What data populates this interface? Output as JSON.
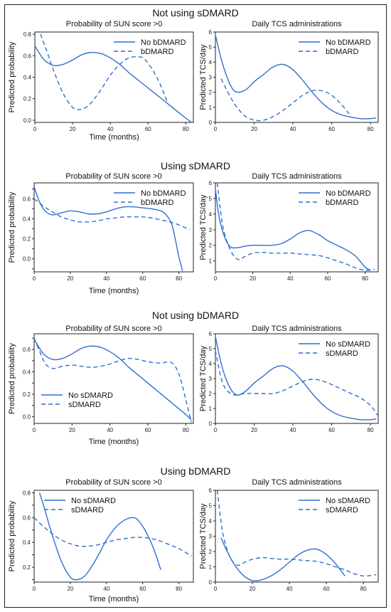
{
  "colors": {
    "series": "#2f6fd0",
    "axis": "#222222",
    "frame": "#222222"
  },
  "sections": [
    {
      "title": "Not using sDMARD"
    },
    {
      "title": "Using sDMARD"
    },
    {
      "title": "Not using bDMARD"
    },
    {
      "title": "Using bDMARD"
    }
  ],
  "chart_data": [
    {
      "type": "line",
      "section": 0,
      "title": "Probability of SUN score >0",
      "xlabel": "Time (months)",
      "ylabel": "Predicted probability",
      "xlim": [
        0,
        84
      ],
      "ylim": [
        -0.02,
        0.82
      ],
      "xticks": [
        0,
        20,
        40,
        60,
        80
      ],
      "yticks": [
        0.0,
        0.2,
        0.4,
        0.6,
        0.8
      ],
      "ytick_labels": [
        "0.0",
        "0.2",
        "0.4",
        "0.6",
        "0.8"
      ],
      "legend": "top-right",
      "series": [
        {
          "name": "No bDMARD",
          "dash": "solid",
          "x": [
            0,
            5,
            10,
            15,
            20,
            25,
            30,
            35,
            40,
            45,
            50,
            55,
            60,
            65,
            70,
            75,
            80,
            83
          ],
          "y": [
            0.69,
            0.56,
            0.51,
            0.52,
            0.56,
            0.61,
            0.63,
            0.62,
            0.58,
            0.52,
            0.44,
            0.37,
            0.3,
            0.23,
            0.16,
            0.09,
            0.02,
            -0.02
          ]
        },
        {
          "name": "bDMARD",
          "dash": "dashed",
          "x": [
            3,
            6,
            10,
            15,
            20,
            24,
            28,
            32,
            36,
            40,
            45,
            50,
            55,
            58,
            62,
            66,
            70
          ],
          "y": [
            0.8,
            0.66,
            0.46,
            0.25,
            0.12,
            0.1,
            0.13,
            0.21,
            0.31,
            0.42,
            0.52,
            0.58,
            0.59,
            0.57,
            0.48,
            0.35,
            0.18
          ]
        }
      ]
    },
    {
      "type": "line",
      "section": 0,
      "title": "Daily TCS administrations",
      "xlabel": "",
      "ylabel": "Predicted  TCS/day",
      "xlim": [
        0,
        84
      ],
      "ylim": [
        0,
        6
      ],
      "xticks": [
        0,
        20,
        40,
        60,
        80
      ],
      "yticks": [
        0,
        1,
        2,
        3,
        4,
        5,
        6
      ],
      "ytick_labels": [
        "0",
        "1",
        "2",
        "3",
        "4",
        "5",
        "6"
      ],
      "legend": "top-right",
      "series": [
        {
          "name": "No bDMARD",
          "dash": "solid",
          "x": [
            0,
            3,
            6,
            9,
            12,
            16,
            20,
            25,
            30,
            35,
            40,
            45,
            50,
            55,
            60,
            65,
            70,
            75,
            80,
            83
          ],
          "y": [
            5.8,
            4.2,
            3.0,
            2.2,
            2.0,
            2.2,
            2.7,
            3.2,
            3.7,
            3.85,
            3.5,
            2.8,
            2.0,
            1.3,
            0.8,
            0.5,
            0.35,
            0.25,
            0.25,
            0.3
          ]
        },
        {
          "name": "bDMARD",
          "dash": "dashed",
          "x": [
            3,
            6,
            10,
            15,
            20,
            25,
            30,
            35,
            40,
            45,
            50,
            55,
            60,
            65,
            70
          ],
          "y": [
            2.9,
            2.1,
            1.2,
            0.45,
            0.15,
            0.15,
            0.4,
            0.8,
            1.3,
            1.8,
            2.1,
            2.1,
            1.8,
            1.2,
            0.4
          ]
        }
      ]
    },
    {
      "type": "line",
      "section": 1,
      "title": "Probability of SUN score >0",
      "xlabel": "Time (months)",
      "ylabel": "Predicted probability",
      "xlim": [
        0,
        88
      ],
      "ylim": [
        -0.13,
        0.76
      ],
      "xticks": [
        0,
        20,
        40,
        60,
        80
      ],
      "yticks": [
        -0.1,
        0.0,
        0.1,
        0.2,
        0.3,
        0.4,
        0.5,
        0.6,
        0.7
      ],
      "ytick_labels": [
        "",
        "0.0",
        "",
        "0.2",
        "",
        "0.4",
        "",
        "0.6",
        ""
      ],
      "legend": "top-right",
      "series": [
        {
          "name": "No bDMARD",
          "dash": "solid",
          "x": [
            0,
            3,
            6,
            10,
            15,
            20,
            25,
            30,
            35,
            40,
            45,
            50,
            55,
            60,
            65,
            70,
            73,
            76,
            78,
            80,
            82
          ],
          "y": [
            0.72,
            0.57,
            0.48,
            0.44,
            0.46,
            0.48,
            0.47,
            0.45,
            0.45,
            0.47,
            0.5,
            0.52,
            0.52,
            0.51,
            0.5,
            0.48,
            0.44,
            0.35,
            0.2,
            0.02,
            -0.12
          ]
        },
        {
          "name": "bDMARD",
          "dash": "dashed",
          "x": [
            0,
            5,
            10,
            15,
            20,
            25,
            30,
            35,
            40,
            45,
            50,
            55,
            60,
            65,
            70,
            75,
            80,
            86
          ],
          "y": [
            0.6,
            0.53,
            0.47,
            0.42,
            0.39,
            0.37,
            0.37,
            0.38,
            0.4,
            0.41,
            0.42,
            0.42,
            0.42,
            0.41,
            0.39,
            0.37,
            0.34,
            0.29
          ]
        }
      ]
    },
    {
      "type": "line",
      "section": 1,
      "title": "Daily TCS administrations",
      "xlabel": "",
      "ylabel": "Predicted  TCS/day",
      "xlim": [
        0,
        87
      ],
      "ylim": [
        0.3,
        6
      ],
      "xticks": [
        0,
        20,
        40,
        60,
        80
      ],
      "yticks": [
        1,
        2,
        3,
        4,
        5,
        6
      ],
      "ytick_labels": [
        "1",
        "2",
        "3",
        "4",
        "5",
        "6"
      ],
      "legend": "top-right",
      "series": [
        {
          "name": "No bDMARD",
          "dash": "solid",
          "x": [
            0,
            2,
            5,
            8,
            12,
            16,
            20,
            25,
            30,
            35,
            40,
            45,
            50,
            55,
            60,
            65,
            70,
            75,
            80,
            83
          ],
          "y": [
            5.6,
            3.8,
            2.5,
            1.9,
            1.85,
            1.95,
            2.0,
            2.0,
            2.0,
            2.1,
            2.4,
            2.8,
            2.95,
            2.7,
            2.3,
            2.0,
            1.7,
            1.3,
            0.6,
            0.4
          ]
        },
        {
          "name": "bDMARD",
          "dash": "dashed",
          "x": [
            1,
            4,
            8,
            12,
            16,
            20,
            25,
            30,
            35,
            40,
            45,
            50,
            55,
            60,
            65,
            70,
            75,
            80,
            85
          ],
          "y": [
            6.0,
            3.2,
            1.7,
            1.1,
            1.3,
            1.5,
            1.55,
            1.5,
            1.5,
            1.5,
            1.45,
            1.4,
            1.35,
            1.2,
            1.0,
            0.8,
            0.55,
            0.4,
            0.45
          ]
        }
      ]
    },
    {
      "type": "line",
      "section": 2,
      "title": "Probability of SUN score >0",
      "xlabel": "Time (months)",
      "ylabel": "Predicted probability",
      "xlim": [
        0,
        84
      ],
      "ylim": [
        -0.06,
        0.74
      ],
      "xticks": [
        0,
        20,
        40,
        60,
        80
      ],
      "yticks": [
        0.0,
        0.1,
        0.2,
        0.3,
        0.4,
        0.5,
        0.6,
        0.7
      ],
      "ytick_labels": [
        "0.0",
        "",
        "0.2",
        "",
        "0.4",
        "",
        "0.6",
        ""
      ],
      "legend": "bottom-center",
      "series": [
        {
          "name": "No sDMARD",
          "dash": "solid",
          "x": [
            0,
            5,
            10,
            15,
            20,
            25,
            30,
            35,
            40,
            45,
            50,
            55,
            60,
            65,
            70,
            75,
            80,
            83
          ],
          "y": [
            0.69,
            0.56,
            0.51,
            0.52,
            0.56,
            0.61,
            0.63,
            0.62,
            0.58,
            0.52,
            0.44,
            0.37,
            0.3,
            0.23,
            0.16,
            0.09,
            0.02,
            -0.03
          ]
        },
        {
          "name": "sDMARD",
          "dash": "dashed",
          "x": [
            0,
            3,
            6,
            10,
            15,
            20,
            25,
            30,
            35,
            40,
            45,
            50,
            55,
            60,
            65,
            68,
            71,
            74,
            77,
            80,
            83
          ],
          "y": [
            0.7,
            0.58,
            0.47,
            0.43,
            0.45,
            0.46,
            0.45,
            0.44,
            0.45,
            0.47,
            0.5,
            0.52,
            0.51,
            0.49,
            0.48,
            0.48,
            0.49,
            0.46,
            0.35,
            0.15,
            -0.05
          ]
        }
      ]
    },
    {
      "type": "line",
      "section": 2,
      "title": "Daily TCS administrations",
      "xlabel": "",
      "ylabel": "Predicted  TCS/day",
      "xlim": [
        0,
        84
      ],
      "ylim": [
        0,
        6
      ],
      "xticks": [
        0,
        20,
        40,
        60,
        80
      ],
      "yticks": [
        0,
        1,
        2,
        3,
        4,
        5,
        6
      ],
      "ytick_labels": [
        "0",
        "1",
        "2",
        "3",
        "4",
        "5",
        "6"
      ],
      "legend": "top-right",
      "series": [
        {
          "name": "No sDMARD",
          "dash": "solid",
          "x": [
            0,
            3,
            6,
            9,
            12,
            16,
            20,
            25,
            30,
            35,
            40,
            45,
            50,
            55,
            60,
            65,
            70,
            75,
            80,
            83
          ],
          "y": [
            5.8,
            4.0,
            2.8,
            2.1,
            1.9,
            2.2,
            2.7,
            3.2,
            3.7,
            3.85,
            3.5,
            2.8,
            2.0,
            1.3,
            0.8,
            0.5,
            0.35,
            0.25,
            0.25,
            0.3
          ]
        },
        {
          "name": "sDMARD",
          "dash": "dashed",
          "x": [
            0,
            3,
            6,
            10,
            15,
            20,
            25,
            30,
            35,
            40,
            45,
            50,
            55,
            60,
            65,
            70,
            75,
            80,
            84
          ],
          "y": [
            4.9,
            3.0,
            2.2,
            1.9,
            2.0,
            2.0,
            2.0,
            2.0,
            2.2,
            2.5,
            2.8,
            2.95,
            2.85,
            2.6,
            2.3,
            2.0,
            1.7,
            1.2,
            0.5
          ]
        }
      ]
    },
    {
      "type": "line",
      "section": 3,
      "title": "Probability of SUN score >0",
      "xlabel": "Time (months)",
      "ylabel": "Predicted probability",
      "xlim": [
        0,
        88
      ],
      "ylim": [
        0.08,
        0.82
      ],
      "xticks": [
        0,
        20,
        40,
        60,
        80
      ],
      "yticks": [
        0.1,
        0.2,
        0.3,
        0.4,
        0.5,
        0.6,
        0.7,
        0.8
      ],
      "ytick_labels": [
        "",
        "0.2",
        "",
        "0.4",
        "",
        "0.6",
        "",
        "0.8"
      ],
      "legend": "top-left",
      "series": [
        {
          "name": "No sDMARD",
          "dash": "solid",
          "x": [
            3,
            6,
            10,
            15,
            20,
            24,
            28,
            32,
            36,
            40,
            45,
            50,
            55,
            58,
            62,
            66,
            70
          ],
          "y": [
            0.8,
            0.66,
            0.46,
            0.25,
            0.12,
            0.1,
            0.13,
            0.21,
            0.31,
            0.42,
            0.52,
            0.58,
            0.6,
            0.57,
            0.48,
            0.35,
            0.18
          ]
        },
        {
          "name": "sDMARD",
          "dash": "dashed",
          "x": [
            0,
            5,
            10,
            15,
            20,
            25,
            30,
            35,
            40,
            45,
            50,
            55,
            60,
            65,
            70,
            75,
            80,
            87
          ],
          "y": [
            0.6,
            0.53,
            0.47,
            0.42,
            0.39,
            0.37,
            0.37,
            0.38,
            0.4,
            0.42,
            0.43,
            0.44,
            0.44,
            0.43,
            0.41,
            0.38,
            0.35,
            0.29
          ]
        }
      ]
    },
    {
      "type": "line",
      "section": 3,
      "title": "Daily TCS administrations",
      "xlabel": "",
      "ylabel": "Predicted  TCS/day",
      "xlim": [
        0,
        88
      ],
      "ylim": [
        0,
        6
      ],
      "xticks": [
        0,
        20,
        40,
        60,
        80
      ],
      "yticks": [
        0,
        1,
        2,
        3,
        4,
        5,
        6
      ],
      "ytick_labels": [
        "0",
        "1",
        "2",
        "3",
        "4",
        "5",
        "6"
      ],
      "legend": "top-right",
      "series": [
        {
          "name": "No sDMARD",
          "dash": "solid",
          "x": [
            3,
            6,
            10,
            15,
            20,
            25,
            30,
            35,
            40,
            45,
            50,
            55,
            60,
            65,
            70
          ],
          "y": [
            2.9,
            2.1,
            1.2,
            0.45,
            0.1,
            0.15,
            0.4,
            0.8,
            1.3,
            1.8,
            2.1,
            2.15,
            1.8,
            1.2,
            0.4
          ]
        },
        {
          "name": "sDMARD",
          "dash": "dashed",
          "x": [
            1,
            4,
            8,
            12,
            16,
            20,
            25,
            30,
            35,
            40,
            45,
            50,
            55,
            60,
            65,
            70,
            75,
            80,
            85,
            87
          ],
          "y": [
            6.0,
            3.2,
            1.6,
            1.1,
            1.3,
            1.5,
            1.6,
            1.55,
            1.5,
            1.5,
            1.45,
            1.4,
            1.35,
            1.2,
            1.0,
            0.8,
            0.55,
            0.4,
            0.45,
            0.5
          ]
        }
      ]
    }
  ]
}
